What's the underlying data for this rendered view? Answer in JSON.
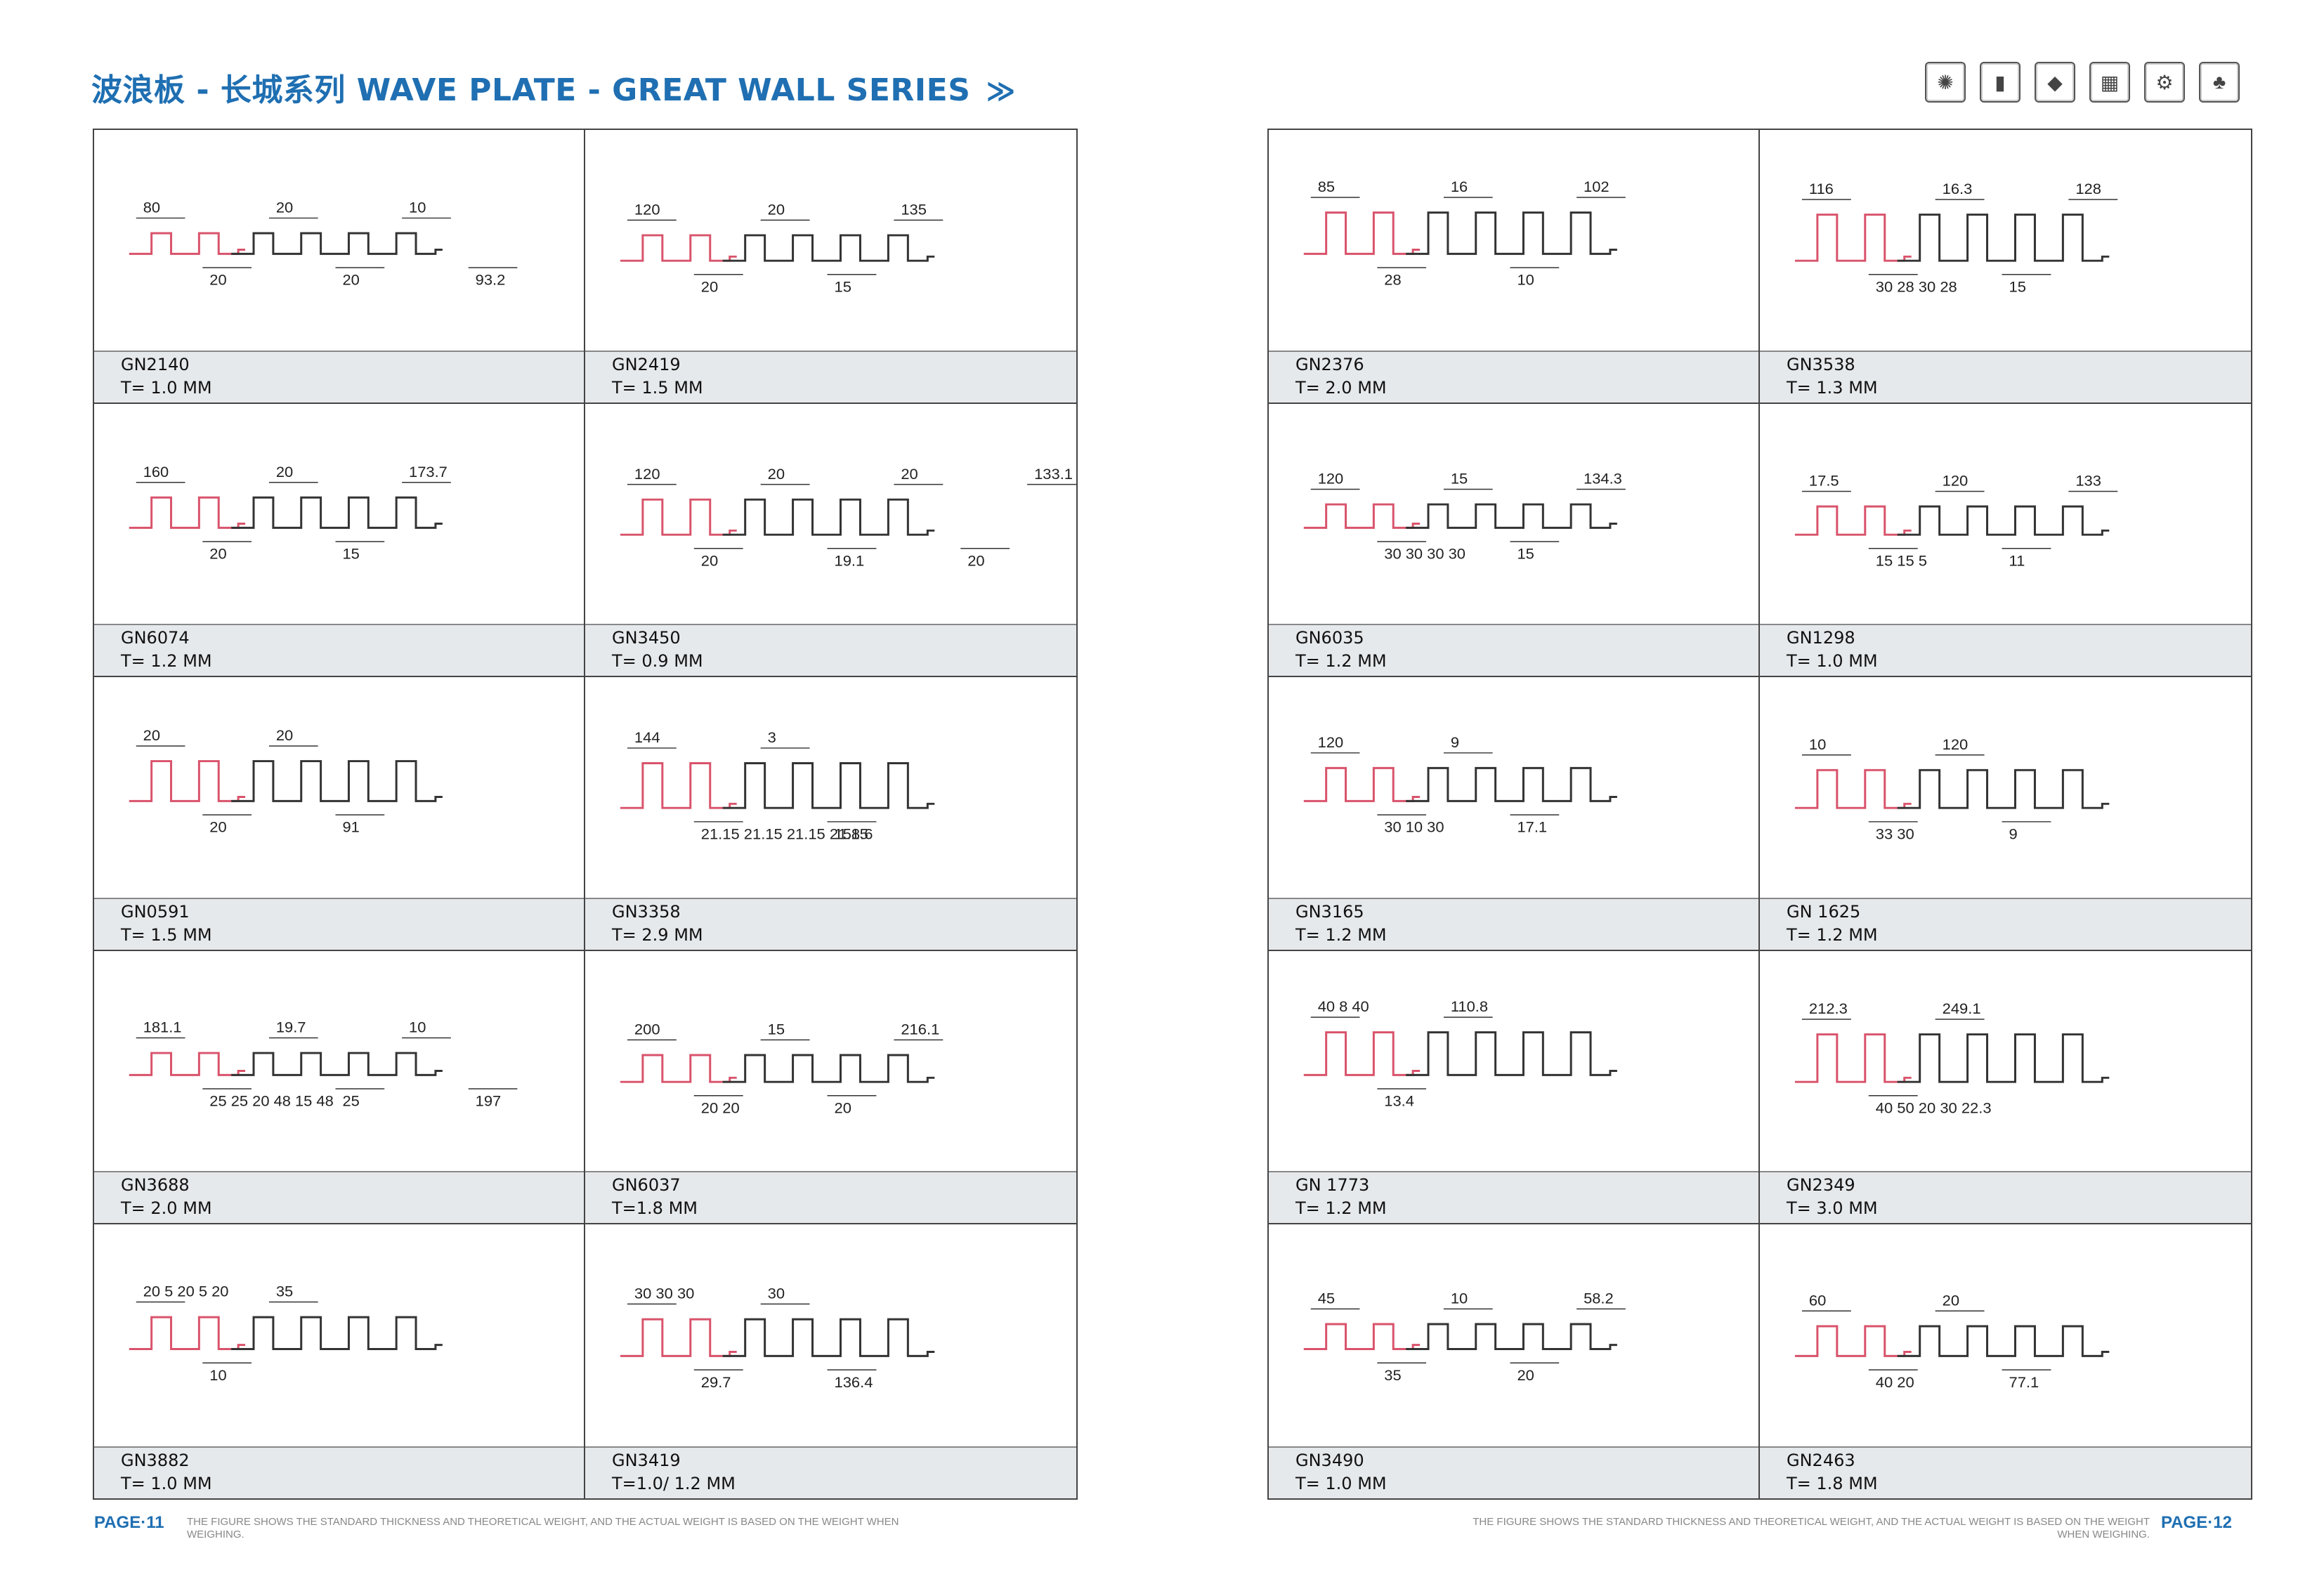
{
  "header": {
    "title": "波浪板 - 长城系列 WAVE PLATE - GREAT WALL SERIES",
    "chevron": "≫",
    "icons": [
      "pills-icon",
      "bottle-icon",
      "book-icon",
      "cosmetics-icon",
      "gear-icon",
      "plant-icon"
    ]
  },
  "colors": {
    "accent": "#1f6fb2",
    "profile_red": "#d9536b",
    "profile_dark": "#333333"
  },
  "left_page": {
    "number": "PAGE·11",
    "note": "THE FIGURE SHOWS THE STANDARD THICKNESS AND THEORETICAL WEIGHT, AND THE ACTUAL WEIGHT IS BASED ON THE WEIGHT WHEN WEIGHING.",
    "items": [
      {
        "code": "GN2140",
        "thickness": "T= 1.0 MM",
        "dims": [
          "80",
          "20",
          "20",
          "20",
          "10",
          "93.2"
        ]
      },
      {
        "code": "GN2419",
        "thickness": "T= 1.5 MM",
        "dims": [
          "120",
          "20",
          "20",
          "15",
          "135"
        ]
      },
      {
        "code": "GN6074",
        "thickness": "T= 1.2 MM",
        "dims": [
          "160",
          "20",
          "20",
          "15",
          "173.7"
        ]
      },
      {
        "code": "GN3450",
        "thickness": "T= 0.9 MM",
        "dims": [
          "120",
          "20",
          "20",
          "19.1",
          "20",
          "20",
          "133.1"
        ]
      },
      {
        "code": "GN0591",
        "thickness": "T= 1.5 MM",
        "dims": [
          "20",
          "20",
          "20",
          "91"
        ]
      },
      {
        "code": "GN3358",
        "thickness": "T= 2.9 MM",
        "dims": [
          "144",
          "21.15 21.15 21.15 21.15",
          "3",
          "158.6"
        ]
      },
      {
        "code": "GN3688",
        "thickness": "T= 2.0 MM",
        "dims": [
          "181.1",
          "25 25 20 48 15 48",
          "19.7",
          "25",
          "10",
          "197"
        ]
      },
      {
        "code": "GN6037",
        "thickness": "T=1.8 MM",
        "dims": [
          "200",
          "20 20",
          "15",
          "20",
          "216.1"
        ]
      },
      {
        "code": "GN3882",
        "thickness": "T= 1.0 MM",
        "dims": [
          "20 5 20 5 20",
          "10",
          "35"
        ]
      },
      {
        "code": "GN3419",
        "thickness": "T=1.0/ 1.2 MM",
        "dims": [
          "30 30 30",
          "29.7",
          "30",
          "136.4"
        ]
      }
    ]
  },
  "right_page": {
    "number": "PAGE·12",
    "note": "THE FIGURE SHOWS THE STANDARD THICKNESS AND THEORETICAL WEIGHT, AND THE ACTUAL WEIGHT IS BASED ON THE WEIGHT WHEN WEIGHING.",
    "items": [
      {
        "code": "GN2376",
        "thickness": "T= 2.0 MM",
        "dims": [
          "85",
          "28",
          "16",
          "10",
          "102"
        ]
      },
      {
        "code": "GN3538",
        "thickness": "T= 1.3 MM",
        "dims": [
          "116",
          "30 28 30 28",
          "16.3",
          "15",
          "128"
        ]
      },
      {
        "code": "GN6035",
        "thickness": "T= 1.2 MM",
        "dims": [
          "120",
          "30 30 30 30",
          "15",
          "15",
          "134.3"
        ]
      },
      {
        "code": "GN1298",
        "thickness": "T= 1.0 MM",
        "dims": [
          "17.5",
          "15 15 5",
          "120",
          "11",
          "133"
        ]
      },
      {
        "code": "GN3165",
        "thickness": "T= 1.2 MM",
        "dims": [
          "120",
          "30 10 30",
          "9",
          "17.1"
        ]
      },
      {
        "code": "GN 1625",
        "thickness": "T= 1.2 MM",
        "dims": [
          "10",
          "33 30",
          "120",
          "9"
        ]
      },
      {
        "code": "GN 1773",
        "thickness": "T=  1.2  MM",
        "dims": [
          "40 8 40",
          "13.4",
          "110.8"
        ]
      },
      {
        "code": "GN2349",
        "thickness": "T=  3.0  MM",
        "dims": [
          "212.3",
          "40 50 20 30 22.3",
          "249.1"
        ]
      },
      {
        "code": "GN3490",
        "thickness": "T= 1.0 MM",
        "dims": [
          "45",
          "35",
          "10",
          "20",
          "58.2"
        ]
      },
      {
        "code": "GN2463",
        "thickness": "T= 1.8 MM",
        "dims": [
          "60",
          "40 20",
          "20",
          "77.1"
        ]
      }
    ]
  }
}
